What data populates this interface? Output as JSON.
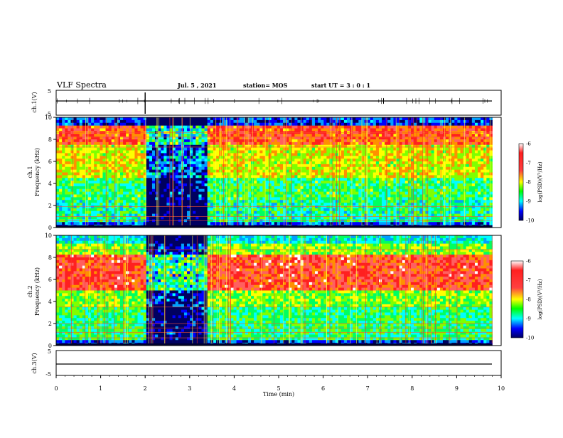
{
  "header": {
    "title": "VLF Spectra",
    "date": "Jul. 5 , 2021",
    "station": "station= MOS",
    "start": "start UT = 3 : 0 : 1"
  },
  "colorbar": {
    "label": "log(PSD)(V²/Hz)",
    "ticks": [
      "-6",
      "-7",
      "-8",
      "-9",
      "-10"
    ],
    "colors": [
      "#ffffff",
      "#ff0000",
      "#ffff00",
      "#00ff00",
      "#00ffff",
      "#0000ff",
      "#000080"
    ]
  },
  "chart_data": [
    {
      "type": "line",
      "panel": "ch1-waveform",
      "ylabel": "ch.1(V)",
      "ylim": [
        -5,
        5
      ],
      "yticks": [
        "5",
        "-5"
      ],
      "xlim": [
        0,
        10
      ],
      "series": [
        {
          "x": [
            0,
            9.8
          ],
          "y": [
            0,
            0
          ]
        }
      ]
    },
    {
      "type": "heatmap",
      "panel": "ch1-spectrogram",
      "ylabel": "ch.1 Frequency (kHz)",
      "ylim": [
        0,
        10
      ],
      "yticks": [
        "0",
        "2",
        "4",
        "6",
        "8",
        "10"
      ],
      "xlim": [
        0,
        10
      ],
      "gap_minutes": [
        2.05,
        3.4
      ],
      "color_range": [
        -10,
        -6
      ]
    },
    {
      "type": "heatmap",
      "panel": "ch2-spectrogram",
      "ylabel": "ch.2 Frequency (kHz)",
      "ylim": [
        0,
        10
      ],
      "yticks": [
        "0",
        "2",
        "4",
        "6",
        "8",
        "10"
      ],
      "xlim": [
        0,
        10
      ],
      "gap_minutes": [
        2.0,
        3.4
      ],
      "color_range": [
        -10,
        -6
      ]
    },
    {
      "type": "line",
      "panel": "ch3-waveform",
      "ylabel": "ch.3(V)",
      "ylim": [
        -5,
        5
      ],
      "yticks": [
        "5",
        "-5"
      ],
      "xlim": [
        0,
        10
      ],
      "series": [
        {
          "x": [
            0,
            9.8
          ],
          "y": [
            0,
            0
          ]
        }
      ]
    }
  ],
  "xaxis": {
    "label": "Time (min)",
    "ticks": [
      "0",
      "1",
      "2",
      "3",
      "4",
      "5",
      "6",
      "7",
      "8",
      "9",
      "10"
    ]
  }
}
